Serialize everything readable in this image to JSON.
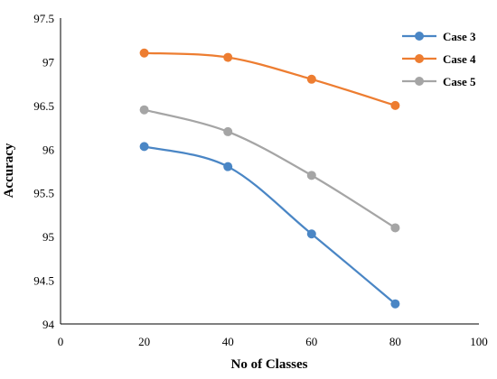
{
  "chart_data": {
    "type": "line",
    "title": "",
    "xlabel": "No of Classes",
    "ylabel": "Accuracy",
    "x": [
      20,
      40,
      60,
      80
    ],
    "xlim": [
      0,
      100
    ],
    "ylim": [
      94,
      97.5
    ],
    "x_ticks": [
      "0",
      "20",
      "40",
      "60",
      "80",
      "100"
    ],
    "y_ticks": [
      "94",
      "94.5",
      "95",
      "95.5",
      "96",
      "96.5",
      "97",
      "97.5"
    ],
    "grid": false,
    "legend": "top-right",
    "smooth": true,
    "series": [
      {
        "name": "Case 3",
        "color": "#4a86c5",
        "values": [
          96.03,
          95.8,
          95.03,
          94.23
        ]
      },
      {
        "name": "Case 4",
        "color": "#ed7d31",
        "values": [
          97.1,
          97.05,
          96.8,
          96.5
        ]
      },
      {
        "name": "Case 5",
        "color": "#a5a5a5",
        "values": [
          96.45,
          96.2,
          95.7,
          95.1
        ]
      }
    ]
  }
}
